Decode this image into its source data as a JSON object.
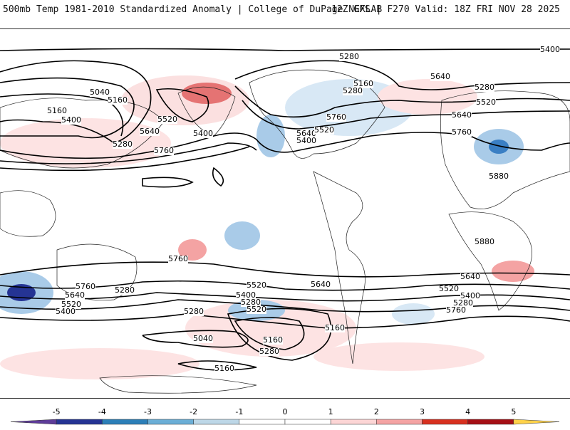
{
  "header": {
    "title_left": "500mb Temp 1981-2010 Standardized Anomaly | College of DuPage NEXLAB",
    "title_right": "12Z GFS | F270 Valid: 18Z FRI NOV 28 2025"
  },
  "map": {
    "contour_labels": [
      "5400",
      "5280",
      "5160",
      "5280",
      "5040",
      "5160",
      "5160",
      "5400",
      "5280",
      "5520",
      "5640",
      "5400",
      "5760",
      "5640",
      "5520",
      "5760",
      "5400",
      "5640",
      "5280",
      "5520",
      "5640",
      "5760",
      "5880",
      "5880",
      "5760",
      "5640",
      "5520",
      "5400",
      "5280",
      "5760",
      "5640",
      "5520",
      "5400",
      "5280",
      "5520",
      "5280",
      "5040",
      "5160",
      "5280",
      "5160",
      "5760",
      "5640",
      "5520",
      "5400",
      "5280",
      "5160"
    ]
  },
  "colorbar": {
    "ticks": [
      "-5",
      "-4",
      "-3",
      "-2",
      "-1",
      "0",
      "1",
      "2",
      "3",
      "4",
      "5"
    ],
    "colors": [
      "#5e3c99",
      "#253494",
      "#2c7fb8",
      "#6baed6",
      "#bdd7e7",
      "#ffffff",
      "#fcd5d5",
      "#f4a3a3",
      "#d7301f",
      "#a50f15",
      "#ffd24a"
    ]
  }
}
